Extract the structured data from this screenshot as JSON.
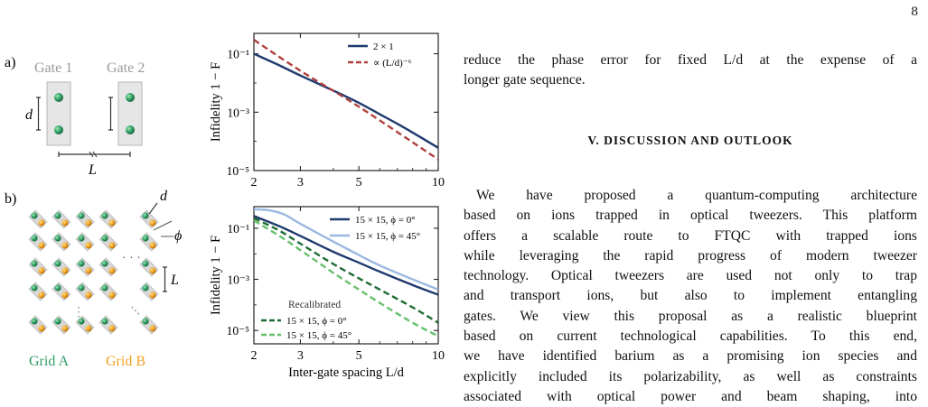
{
  "page": {
    "number": "8"
  },
  "figure": {
    "panel_a": {
      "label": "a)",
      "gate1_label": "Gate 1",
      "gate2_label": "Gate 2",
      "d_label": "d",
      "L_label": "L"
    },
    "panel_b": {
      "label": "b)",
      "d_label": "d",
      "phi_label": "ϕ",
      "L_label": "L",
      "grid_a_label": "Grid A",
      "grid_b_label": "Grid B",
      "grid_a_color": "#2e9e63",
      "grid_b_color": "#f0a020"
    }
  },
  "chart_data": [
    {
      "type": "line",
      "panel": "a",
      "ylabel": "Infidelity 1 − F",
      "xlabel": "",
      "xscale": "log",
      "yscale": "log",
      "xlim": [
        2,
        10
      ],
      "ylim": [
        1e-05,
        0.5
      ],
      "x_ticks": [
        "2",
        "3",
        "5",
        "10"
      ],
      "y_ticks": [
        "10⁻¹",
        "10⁻³",
        "10⁻⁵"
      ],
      "legend_position": "top-right",
      "series": [
        {
          "name": "2 × 1",
          "color": "#1f3a6e",
          "style": "solid",
          "x": [
            2,
            2.5,
            3,
            4,
            5,
            6,
            7,
            8,
            10
          ],
          "y": [
            0.1,
            0.04,
            0.018,
            0.0055,
            0.0021,
            0.00085,
            0.0004,
            0.0002,
            6e-05
          ]
        },
        {
          "name": "∝ (L/d)⁻⁶",
          "color": "#b0413e",
          "style": "dashed",
          "x": [
            2,
            3,
            5,
            10
          ],
          "y": [
            0.3,
            0.0263,
            0.00154,
            2.4e-05
          ]
        }
      ]
    },
    {
      "type": "line",
      "panel": "b",
      "ylabel": "Infidelity 1 − F",
      "xlabel": "Inter-gate spacing L/d",
      "xscale": "log",
      "yscale": "log",
      "xlim": [
        2,
        10
      ],
      "ylim": [
        3e-06,
        0.7
      ],
      "x_ticks": [
        "2",
        "3",
        "5",
        "10"
      ],
      "y_ticks": [
        "10⁻¹",
        "10⁻³",
        "10⁻⁵"
      ],
      "legend_position": "top-right",
      "legend2_title": "Recalibrated",
      "legend2_position": "bottom-left",
      "series": [
        {
          "name": "15 × 15, ϕ = 0°",
          "color": "#1f3a6e",
          "style": "solid",
          "x": [
            2,
            2.5,
            3,
            4,
            5,
            6,
            8,
            10
          ],
          "y": [
            0.3,
            0.12,
            0.05,
            0.012,
            0.0045,
            0.002,
            0.0006,
            0.00025
          ]
        },
        {
          "name": "15 × 15, ϕ = 45°",
          "color": "#9ab8e0",
          "style": "solid",
          "x": [
            2,
            2.3,
            2.6,
            3,
            4,
            5,
            6,
            8,
            10
          ],
          "y": [
            0.55,
            0.5,
            0.35,
            0.15,
            0.03,
            0.009,
            0.0035,
            0.001,
            0.0004
          ]
        },
        {
          "name": "15 × 15, ϕ = 0°",
          "color": "#1e6b34",
          "style": "dashed",
          "recalibrated": true,
          "x": [
            2,
            2.5,
            3,
            4,
            5,
            6,
            8,
            10
          ],
          "y": [
            0.25,
            0.08,
            0.025,
            0.004,
            0.0011,
            0.0004,
            8e-05,
            2e-05
          ]
        },
        {
          "name": "15 × 15, ϕ = 45°",
          "color": "#66c06a",
          "style": "dashed",
          "recalibrated": true,
          "x": [
            2,
            2.5,
            3,
            4,
            5,
            6,
            8,
            10
          ],
          "y": [
            0.2,
            0.05,
            0.014,
            0.0018,
            0.0004,
            0.00012,
            2e-05,
            6e-06
          ]
        }
      ]
    }
  ],
  "text": {
    "top_line_1": "reduce the phase error for fixed L/d at the expense of a",
    "top_line_2": "longer gate sequence.",
    "section_heading": "V.   DISCUSSION AND OUTLOOK",
    "body_lines": [
      "We have proposed a quantum-computing architecture",
      "based on ions trapped in optical tweezers. This platform",
      "offers a scalable route to FTQC with trapped ions",
      "while leveraging the rapid progress of modern tweezer",
      "technology. Optical tweezers are used not only to trap",
      "and transport ions, but also to implement entangling",
      "gates. We view this proposal as a realistic blueprint",
      "based on current technological capabilities. To this end,",
      "we have identified barium as a promising ion species and",
      "explicitly included its polarizability, as well as constraints",
      "associated with optical power and beam shaping, into"
    ]
  }
}
